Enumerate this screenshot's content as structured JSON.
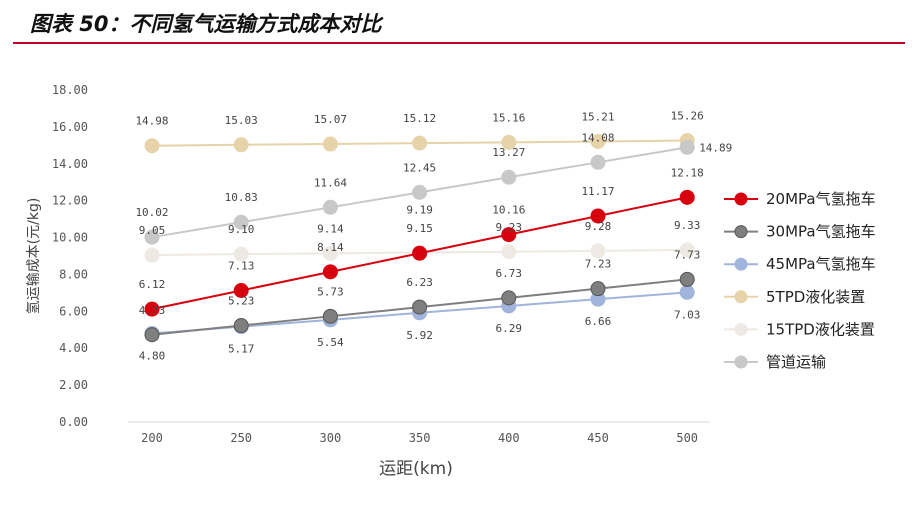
{
  "title": "图表 50：不同氢气运输方式成本对比",
  "chart_data": {
    "type": "line",
    "xlabel": "运距(km)",
    "ylabel": "氢运输成本(元/kg)",
    "categories": [
      "200",
      "250",
      "300",
      "350",
      "400",
      "450",
      "500"
    ],
    "ylim": [
      0,
      18
    ],
    "yticks": [
      "0.00",
      "2.00",
      "4.00",
      "6.00",
      "8.00",
      "10.00",
      "12.00",
      "14.00",
      "16.00",
      "18.00"
    ],
    "grid": false,
    "legend": "right",
    "series": [
      {
        "name": "20MPa气氢拖车",
        "color": "#d7000f",
        "values": [
          6.12,
          7.13,
          8.14,
          9.15,
          10.16,
          11.17,
          12.18
        ],
        "labels": [
          "6.12",
          "7.13",
          "8.14",
          "9.15",
          "10.16",
          "11.17",
          "12.18"
        ]
      },
      {
        "name": "30MPa气氢拖车",
        "color": "#7f7f7f",
        "values": [
          4.73,
          5.23,
          5.73,
          6.23,
          6.73,
          7.23,
          7.73
        ],
        "labels": [
          "4.73",
          "5.23",
          "5.73",
          "6.23",
          "6.73",
          "7.23",
          "7.73"
        ]
      },
      {
        "name": "45MPa气氢拖车",
        "color": "#a1b4dc",
        "values": [
          4.8,
          5.17,
          5.54,
          5.92,
          6.29,
          6.66,
          7.03
        ],
        "labels": [
          "4.80",
          "5.17",
          "5.54",
          "5.92",
          "6.29",
          "6.66",
          "7.03"
        ]
      },
      {
        "name": "5TPD液化装置",
        "color": "#e6d3a9",
        "values": [
          14.98,
          15.03,
          15.07,
          15.12,
          15.16,
          15.21,
          15.26
        ],
        "labels": [
          "14.98",
          "15.03",
          "15.07",
          "15.12",
          "15.16",
          "15.21",
          "15.26"
        ]
      },
      {
        "name": "15TPD液化装置",
        "color": "#efe9e3",
        "values": [
          9.05,
          9.1,
          9.14,
          9.19,
          9.23,
          9.28,
          9.33
        ],
        "labels": [
          "9.05",
          "9.10",
          "9.14",
          "9.19",
          "9.23",
          "9.28",
          "9.33"
        ]
      },
      {
        "name": "管道运输",
        "color": "#c8c8c8",
        "values": [
          10.02,
          10.83,
          11.64,
          12.45,
          13.27,
          14.08,
          14.89
        ],
        "labels": [
          "10.02",
          "10.83",
          "11.64",
          "12.45",
          "13.27",
          "14.08",
          "14.89"
        ]
      }
    ]
  }
}
